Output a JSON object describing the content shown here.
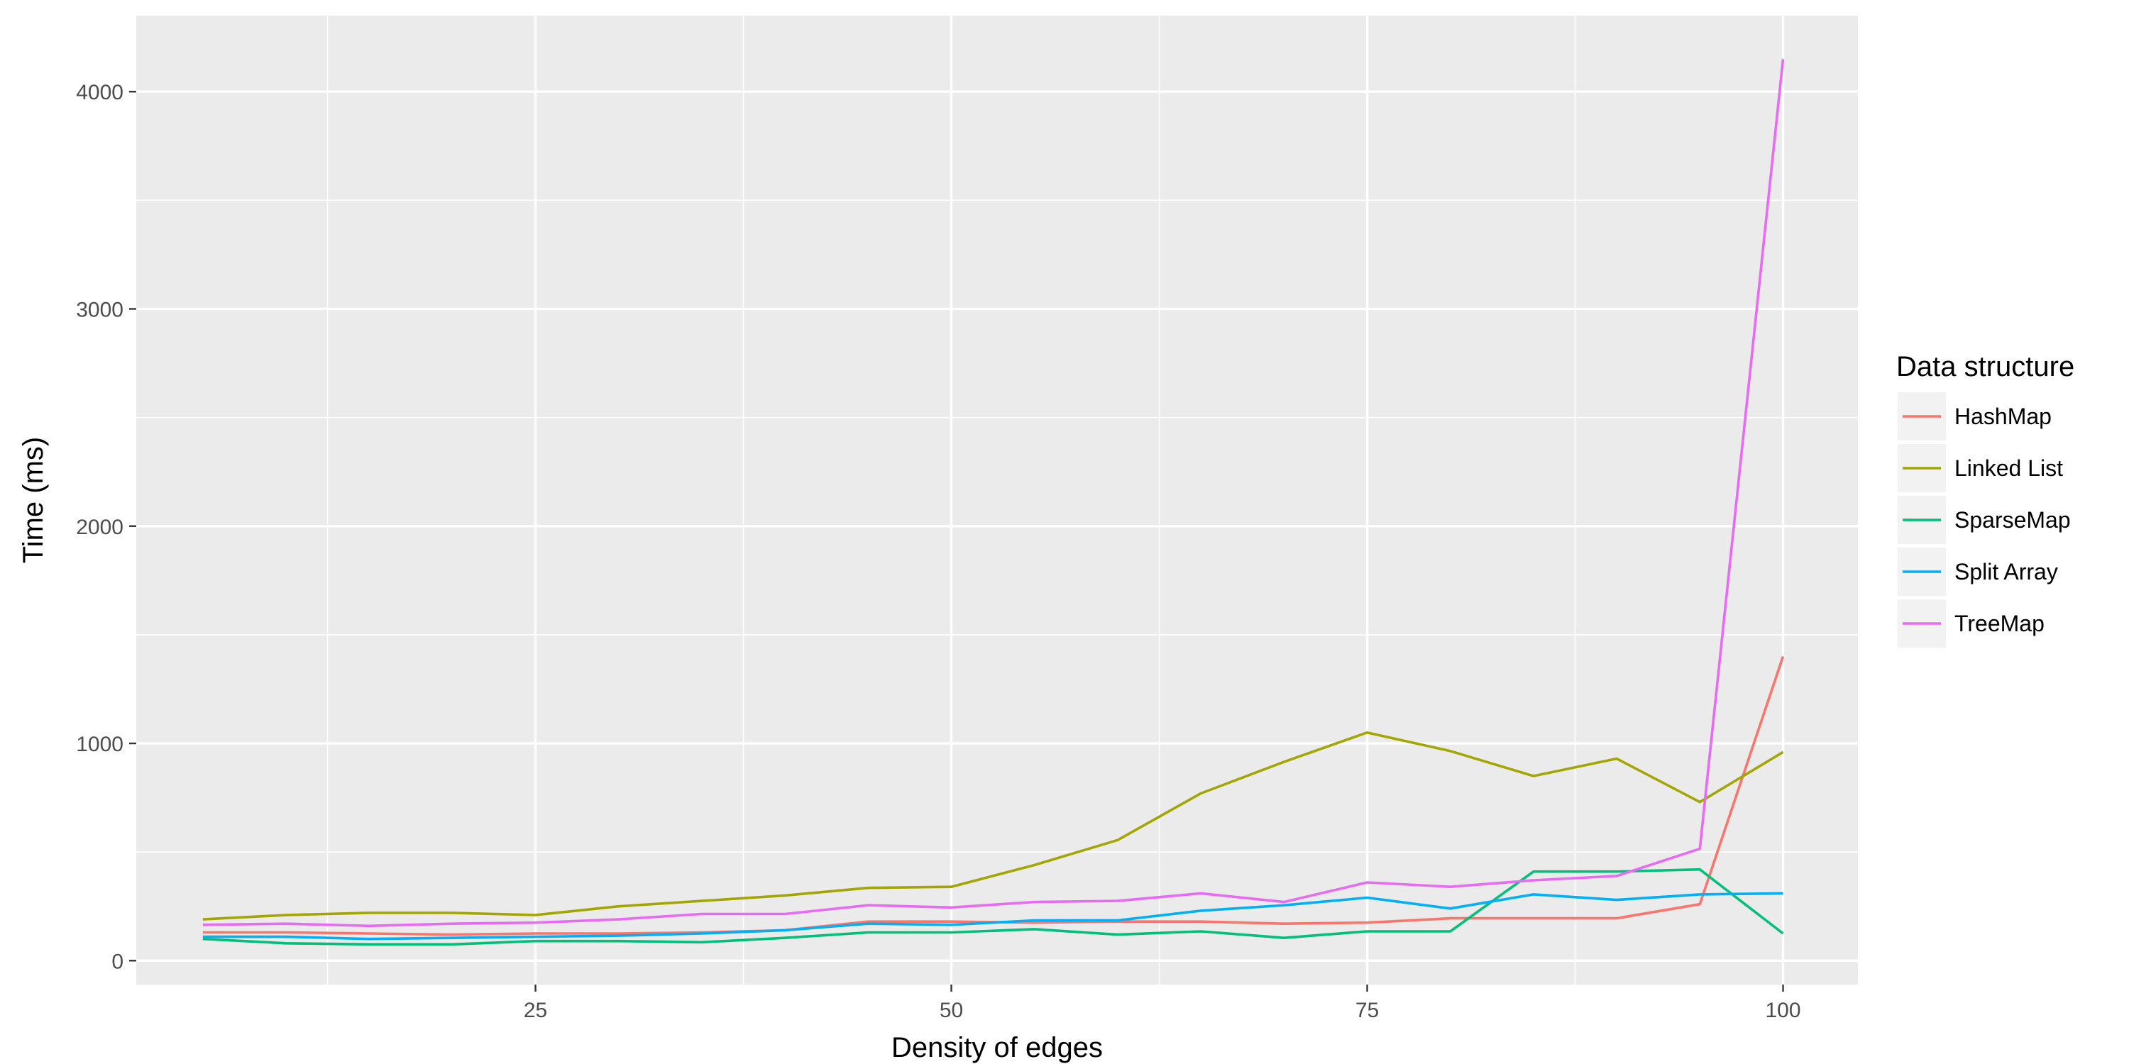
{
  "chart_data": {
    "type": "line",
    "title": "",
    "xlabel": "Density of edges",
    "ylabel": "Time (ms)",
    "xlim": [
      1,
      104.5
    ],
    "ylim": [
      -110,
      4350
    ],
    "x_ticks": [
      25,
      50,
      75,
      100
    ],
    "x_tick_labels": [
      "25",
      "50",
      "75",
      "100"
    ],
    "x_minor_ticks": [
      12.5,
      37.5,
      62.5,
      87.5
    ],
    "y_ticks": [
      0,
      1000,
      2000,
      3000,
      4000
    ],
    "y_tick_labels": [
      "0",
      "1000",
      "2000",
      "3000",
      "4000"
    ],
    "y_minor_ticks": [
      500,
      1500,
      2500,
      3500
    ],
    "grid": true,
    "background": "#ebebeb",
    "legend": {
      "title": "Data structure",
      "position": "right"
    },
    "x": [
      5,
      10,
      15,
      20,
      25,
      30,
      35,
      40,
      45,
      50,
      55,
      60,
      65,
      70,
      75,
      80,
      85,
      90,
      95,
      100
    ],
    "series": [
      {
        "name": "HashMap",
        "color": "#F8766D",
        "values": [
          130,
          130,
          125,
          120,
          125,
          125,
          130,
          140,
          180,
          180,
          175,
          180,
          180,
          170,
          175,
          195,
          195,
          195,
          260,
          1400
        ]
      },
      {
        "name": "Linked List",
        "color": "#A3A500",
        "values": [
          190,
          210,
          220,
          220,
          210,
          250,
          275,
          300,
          335,
          340,
          440,
          555,
          770,
          915,
          1050,
          965,
          850,
          930,
          730,
          960
        ]
      },
      {
        "name": "SparseMap",
        "color": "#00BF7D",
        "values": [
          100,
          80,
          75,
          75,
          90,
          90,
          85,
          105,
          130,
          130,
          145,
          120,
          135,
          105,
          135,
          135,
          410,
          410,
          420,
          125
        ]
      },
      {
        "name": "Split Array",
        "color": "#00B0F6",
        "values": [
          110,
          110,
          100,
          105,
          110,
          115,
          125,
          140,
          170,
          165,
          185,
          185,
          230,
          255,
          290,
          240,
          305,
          280,
          305,
          310
        ]
      },
      {
        "name": "TreeMap",
        "color": "#E76BF3",
        "values": [
          165,
          170,
          160,
          170,
          175,
          190,
          215,
          215,
          255,
          245,
          270,
          275,
          310,
          270,
          360,
          340,
          370,
          390,
          515,
          4150
        ]
      }
    ]
  }
}
